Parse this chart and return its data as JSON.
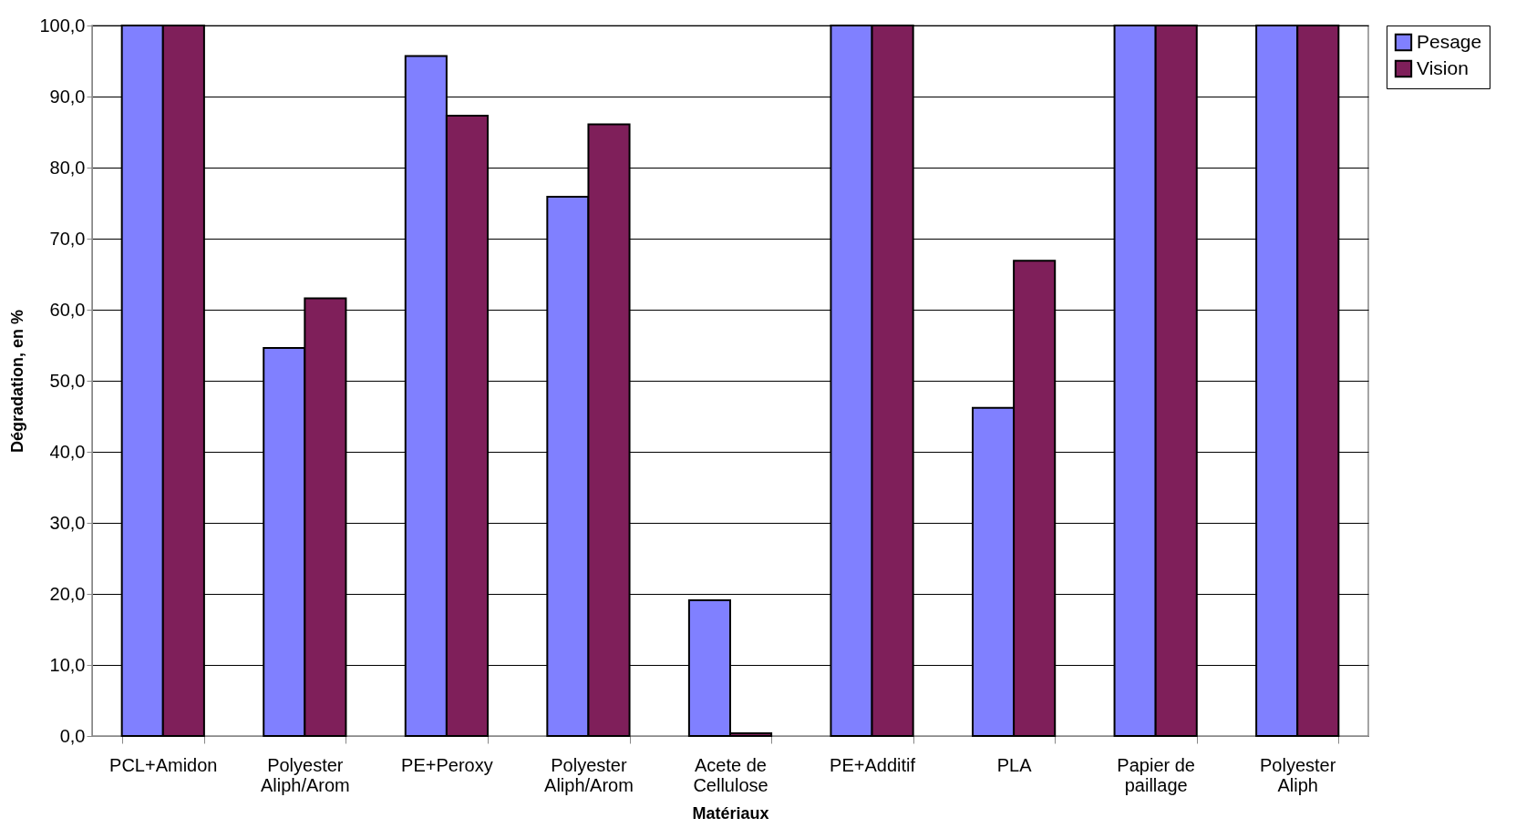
{
  "chart_data": {
    "type": "bar",
    "xlabel": "Matériaux",
    "ylabel": "Dégradation, en %",
    "categories": [
      "PCL+Amidon",
      "Polyester Aliph/Arom",
      "PE+Peroxy",
      "Polyester Aliph/Arom",
      "Acete de Cellulose",
      "PE+Additif",
      "PLA",
      "Papier de paillage",
      "Polyester Aliph"
    ],
    "series": [
      {
        "name": "Pesage",
        "color": "#8080ff",
        "values": [
          100,
          54.6,
          95.7,
          75.9,
          19.1,
          100,
          46.2,
          100,
          100
        ]
      },
      {
        "name": "Vision",
        "color": "#7f1f5a",
        "values": [
          100,
          61.6,
          87.3,
          86.1,
          0.4,
          100,
          66.9,
          100,
          100
        ]
      }
    ],
    "ylim": [
      0,
      100
    ],
    "yticks": [
      {
        "value": 0,
        "label": "0,0"
      },
      {
        "value": 10,
        "label": "10,0"
      },
      {
        "value": 20,
        "label": "20,0"
      },
      {
        "value": 30,
        "label": "30,0"
      },
      {
        "value": 40,
        "label": "40,0"
      },
      {
        "value": 50,
        "label": "50,0"
      },
      {
        "value": 60,
        "label": "60,0"
      },
      {
        "value": 70,
        "label": "70,0"
      },
      {
        "value": 80,
        "label": "80,0"
      },
      {
        "value": 90,
        "label": "90,0"
      },
      {
        "value": 100,
        "label": "100,0"
      }
    ],
    "grid": "y",
    "legend": "right"
  }
}
